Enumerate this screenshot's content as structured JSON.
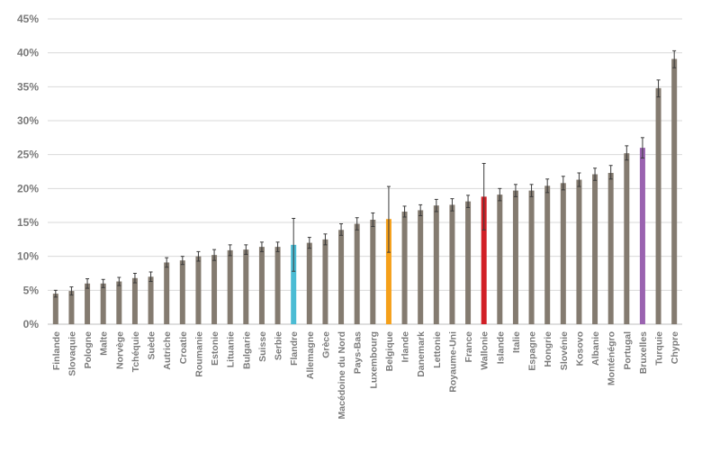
{
  "chart_data": {
    "type": "bar",
    "title": "",
    "xlabel": "",
    "ylabel": "",
    "ylim": [
      0,
      45
    ],
    "ytick_step": 5,
    "ytick_format": "{v}%",
    "grid": true,
    "legend": false,
    "categories": [
      "Finlande",
      "Slovaquie",
      "Pologne",
      "Malte",
      "Norvège",
      "Tchéquie",
      "Suède",
      "Autriche",
      "Croatie",
      "Roumanie",
      "Estonie",
      "Lituanie",
      "Bulgarie",
      "Suisse",
      "Serbie",
      "Flandre",
      "Allemagne",
      "Grèce",
      "Macédoine du Nord",
      "Pays-Bas",
      "Luxembourg",
      "Belgique",
      "Irlande",
      "Danemark",
      "Lettonie",
      "Royaume-Uni",
      "France",
      "Wallonie",
      "Islande",
      "Italie",
      "Espagne",
      "Hongrie",
      "Slovénie",
      "Kosovo",
      "Albanie",
      "Monténégro",
      "Portugal",
      "Bruxelles",
      "Turquie",
      "Chypre"
    ],
    "values": [
      4.5,
      4.9,
      6.0,
      6.0,
      6.3,
      6.8,
      7.0,
      9.1,
      9.4,
      10.0,
      10.2,
      10.9,
      11.0,
      11.4,
      11.4,
      11.7,
      12.0,
      12.5,
      13.9,
      14.8,
      15.4,
      15.5,
      16.6,
      16.8,
      17.5,
      17.6,
      18.1,
      18.8,
      19.1,
      19.7,
      19.7,
      20.4,
      20.8,
      21.3,
      22.1,
      22.3,
      25.2,
      26.0,
      34.8,
      39.1
    ],
    "error_low": [
      4.0,
      4.3,
      5.3,
      5.4,
      5.7,
      6.1,
      6.3,
      8.4,
      8.8,
      9.3,
      9.4,
      10.1,
      10.3,
      10.7,
      10.7,
      7.8,
      11.2,
      11.7,
      13.1,
      13.9,
      14.4,
      10.6,
      15.8,
      16.0,
      16.6,
      16.7,
      17.2,
      13.9,
      18.2,
      18.8,
      18.8,
      19.4,
      19.8,
      20.3,
      21.2,
      21.4,
      24.2,
      24.5,
      33.5,
      37.8
    ],
    "error_high": [
      5.0,
      5.5,
      6.7,
      6.6,
      6.9,
      7.5,
      7.7,
      9.8,
      10.0,
      10.7,
      11.0,
      11.7,
      11.7,
      12.1,
      12.1,
      15.6,
      12.8,
      13.3,
      14.8,
      15.7,
      16.4,
      20.3,
      17.4,
      17.6,
      18.4,
      18.5,
      19.0,
      23.7,
      20.0,
      20.6,
      20.6,
      21.4,
      21.8,
      22.3,
      23.0,
      23.4,
      26.3,
      27.5,
      36.0,
      40.3
    ],
    "default_color": "#847b70",
    "highlight_colors": {
      "Flandre": "#4bbcd4",
      "Belgique": "#f5a01a",
      "Wallonie": "#d11f26",
      "Bruxelles": "#9a63b0"
    },
    "grid_color": "#d9d9d9",
    "axis_color": "#bfbfbf",
    "error_bar_color": "#3a3a3a"
  }
}
